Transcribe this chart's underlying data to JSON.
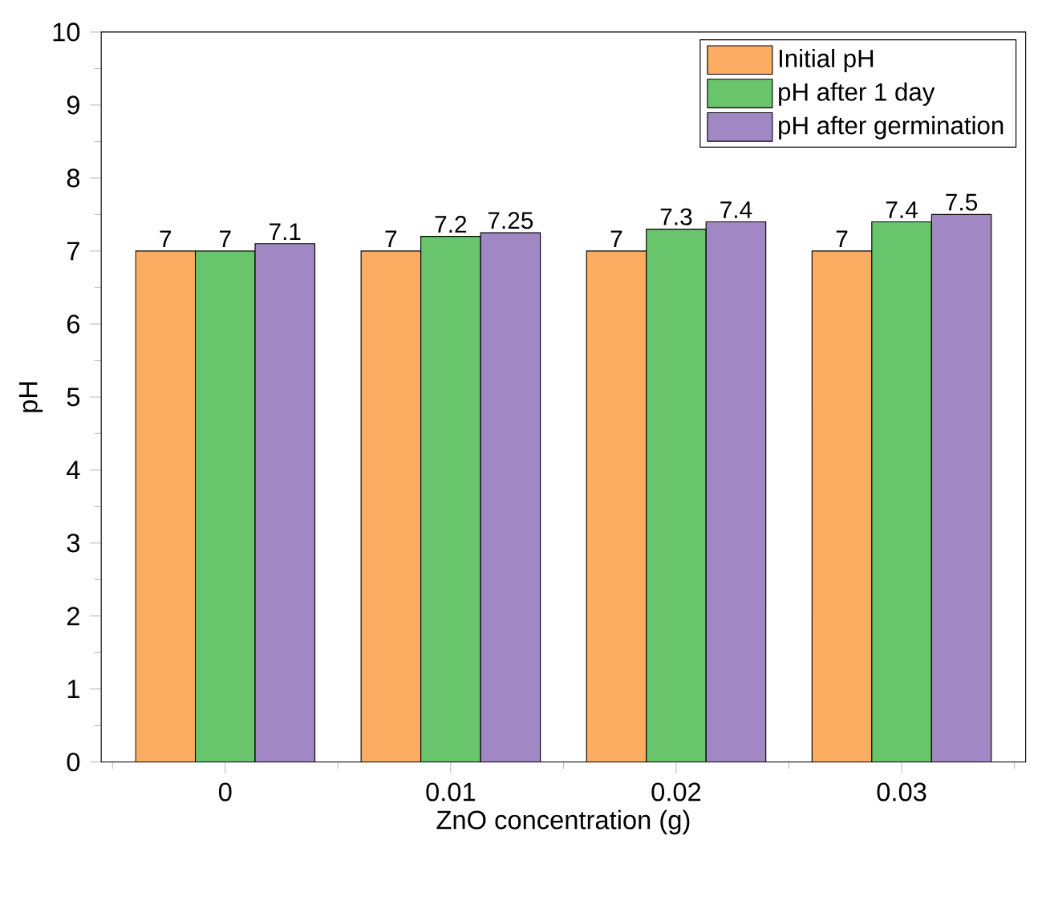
{
  "chart_data": {
    "type": "bar",
    "xlabel": "ZnO concentration (g)",
    "ylabel": "pH",
    "categories": [
      "0",
      "0.01",
      "0.02",
      "0.03"
    ],
    "series": [
      {
        "name": "Initial pH",
        "color": "#fdad62",
        "values": [
          7,
          7,
          7,
          7
        ]
      },
      {
        "name": "pH after 1 day",
        "color": "#68c56c",
        "values": [
          7,
          7.2,
          7.3,
          7.4
        ]
      },
      {
        "name": "pH after germination",
        "color": "#a188c4",
        "values": [
          7.1,
          7.25,
          7.4,
          7.5
        ]
      }
    ],
    "ylim": [
      0,
      10
    ],
    "yticks": [
      0,
      1,
      2,
      3,
      4,
      5,
      6,
      7,
      8,
      9,
      10
    ],
    "data_labels": true,
    "legend": "top right",
    "grid": false
  }
}
